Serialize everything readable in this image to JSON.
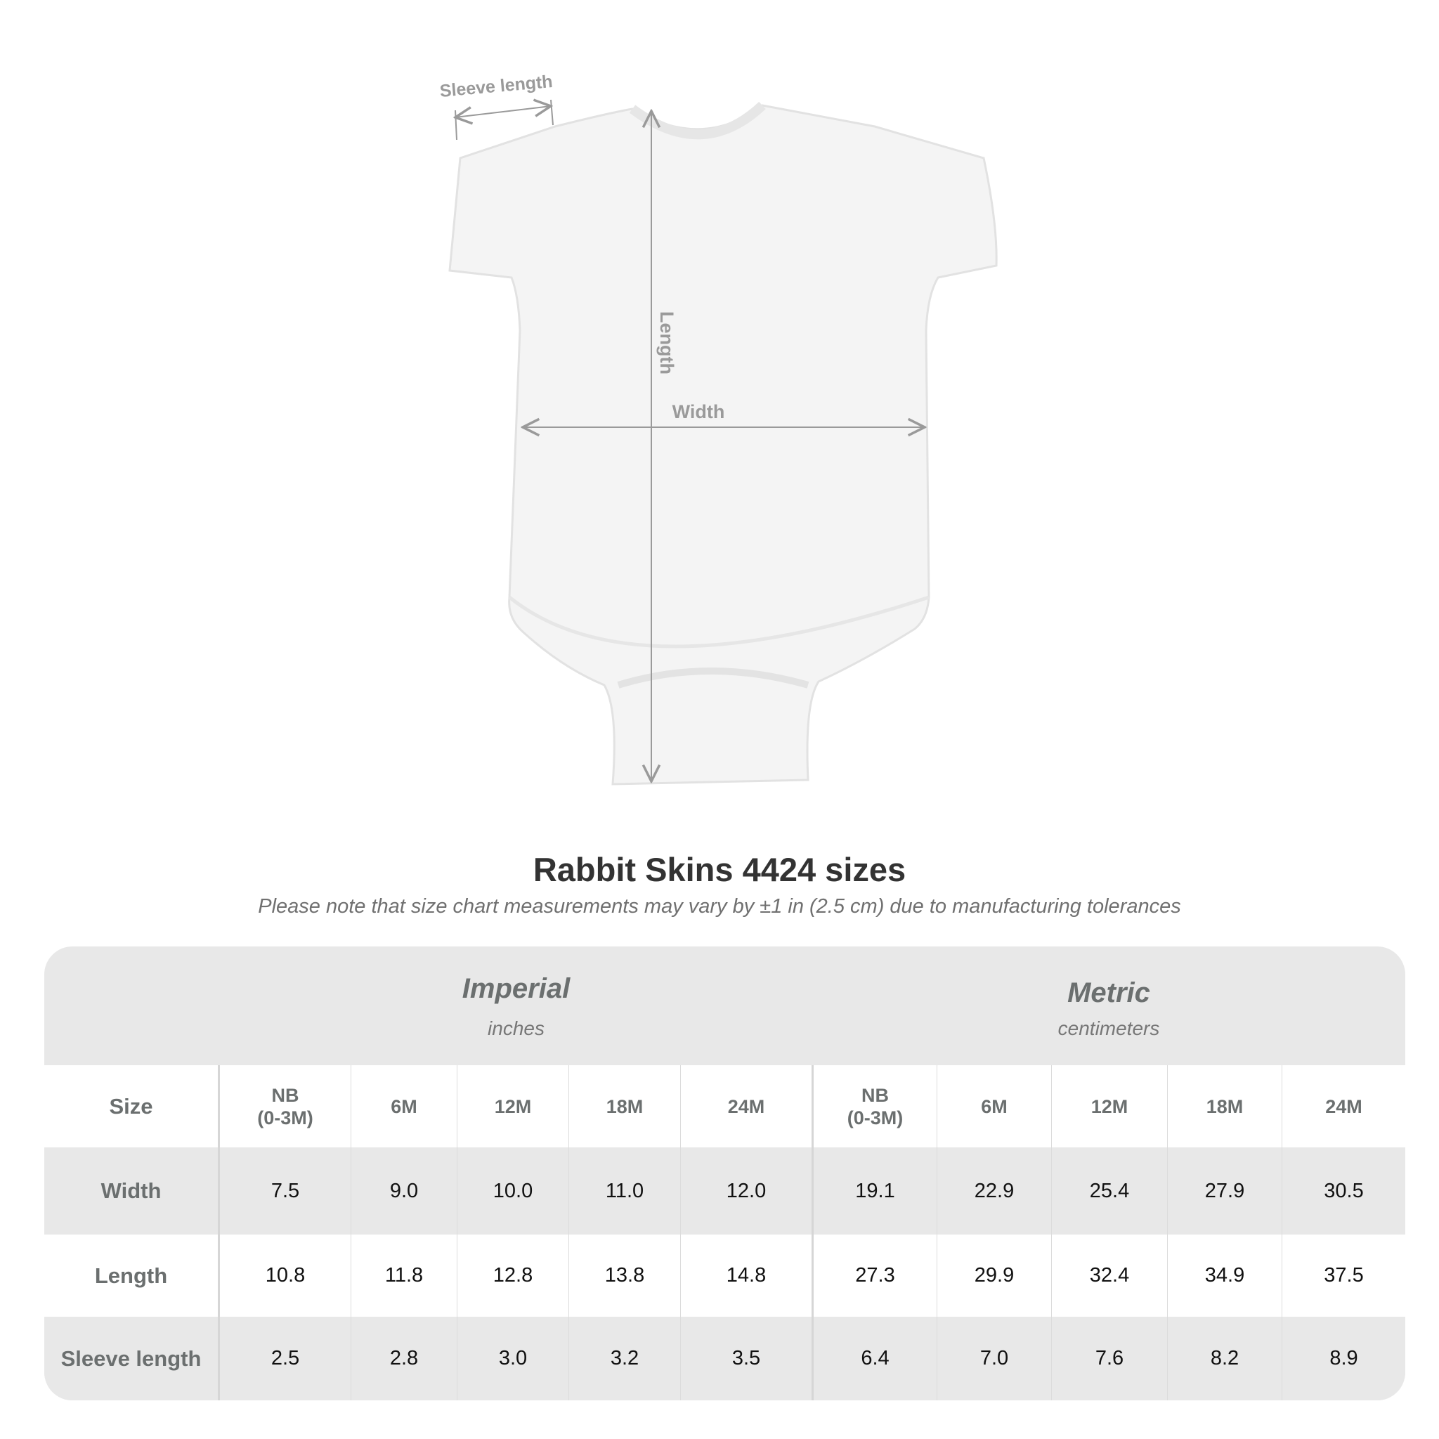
{
  "diagram": {
    "labels": {
      "sleeve": "Sleeve length",
      "length": "Length",
      "width": "Width"
    },
    "colors": {
      "garment": "#f4f4f4",
      "measure_line": "#9a9a9a"
    }
  },
  "title": "Rabbit Skins 4424 sizes",
  "subtitle": "Please note that size chart measurements may vary by ±1 in (2.5 cm) due to manufacturing tolerances",
  "table": {
    "imperial": {
      "label": "Imperial",
      "unit": "inches"
    },
    "metric": {
      "label": "Metric",
      "unit": "centimeters"
    },
    "size_label": "Size",
    "sizes": [
      "NB\n(0-3M)",
      "6M",
      "12M",
      "18M",
      "24M",
      "NB\n(0-3M)",
      "6M",
      "12M",
      "18M",
      "24M"
    ],
    "rows": [
      {
        "label": "Width",
        "values": [
          "7.5",
          "9.0",
          "10.0",
          "11.0",
          "12.0",
          "19.1",
          "22.9",
          "25.4",
          "27.9",
          "30.5"
        ]
      },
      {
        "label": "Length",
        "values": [
          "10.8",
          "11.8",
          "12.8",
          "13.8",
          "14.8",
          "27.3",
          "29.9",
          "32.4",
          "34.9",
          "37.5"
        ]
      },
      {
        "label": "Sleeve length",
        "values": [
          "2.5",
          "2.8",
          "3.0",
          "3.2",
          "3.5",
          "6.4",
          "7.0",
          "7.6",
          "8.2",
          "8.9"
        ]
      }
    ],
    "colors": {
      "header_bg": "#e8e8e8",
      "label_text": "#6b6f6f"
    }
  }
}
